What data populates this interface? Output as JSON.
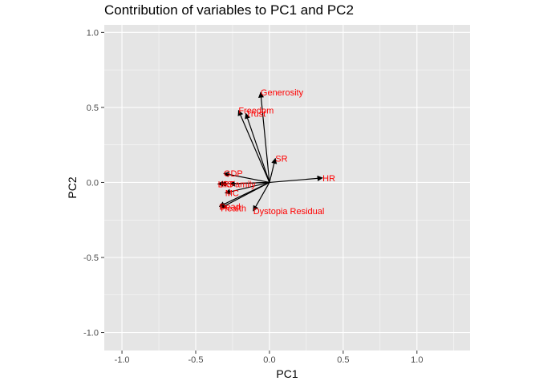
{
  "chart_data": {
    "type": "scatter",
    "title": "Contribution of variables to PC1 and PC2",
    "xlabel": "PC1",
    "ylabel": "PC2",
    "xlim": [
      -1.12,
      1.36
    ],
    "ylim": [
      -1.12,
      1.05
    ],
    "x_ticks": [
      -1.0,
      -0.5,
      0.0,
      0.5,
      1.0
    ],
    "x_tick_labels": [
      "-1.0",
      "-0.5",
      "0.0",
      "0.5",
      "1.0"
    ],
    "y_ticks": [
      -1.0,
      -0.5,
      0.0,
      0.5,
      1.0
    ],
    "y_tick_labels": [
      "-1.0",
      "-0.5",
      "0.0",
      "0.5",
      "1.0"
    ],
    "grid": true,
    "arrow_color": "#000000",
    "label_color": "#ff0000",
    "panel_color": "#e5e5e5",
    "grid_color": "#ffffff",
    "vectors": [
      {
        "name": "Generosity",
        "x": -0.06,
        "y": 0.6
      },
      {
        "name": "Freedom",
        "x": -0.21,
        "y": 0.48
      },
      {
        "name": "Trust",
        "x": -0.16,
        "y": 0.46
      },
      {
        "name": "SR",
        "x": 0.04,
        "y": 0.16
      },
      {
        "name": "HR",
        "x": 0.36,
        "y": 0.03
      },
      {
        "name": "GDP",
        "x": -0.31,
        "y": 0.06
      },
      {
        "name": "Family",
        "x": -0.27,
        "y": -0.01
      },
      {
        "name": "LR",
        "x": -0.35,
        "y": -0.01
      },
      {
        "name": "HS",
        "x": -0.33,
        "y": -0.01
      },
      {
        "name": "MC",
        "x": -0.3,
        "y": -0.07
      },
      {
        "name": "Health",
        "x": -0.33,
        "y": -0.17
      },
      {
        "name": "Dead",
        "x": -0.34,
        "y": -0.16
      },
      {
        "name": "Dystopia Residual",
        "x": -0.11,
        "y": -0.19
      }
    ]
  }
}
